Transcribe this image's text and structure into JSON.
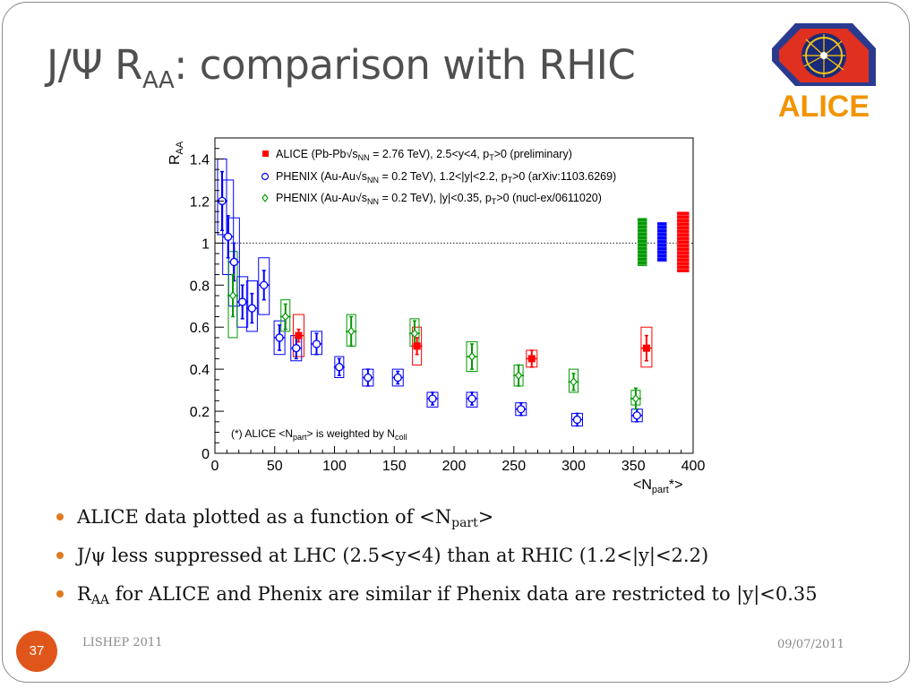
{
  "slide": {
    "title_main": "J/Ψ R",
    "title_sub": "AA",
    "title_rest": ": comparison with RHIC",
    "logo_text": "ALICE",
    "page_number": "37",
    "footer_left": "LISHEP 2011",
    "footer_right": "09/07/2011",
    "bullets": [
      {
        "pre": "ALICE data plotted as a function of <N",
        "sub": "part",
        "post": ">"
      },
      {
        "pre": "J/ψ less suppressed at LHC (2.5<y<4) than at RHIC (1.2<|y|<2.2)",
        "sub": "",
        "post": ""
      },
      {
        "pre": "R",
        "sub": "AA",
        "post": " for ALICE and Phenix are similar if Phenix data are restricted to |y|<0.35"
      }
    ],
    "colors": {
      "accent": "#e07a1f",
      "page_circle": "#e0561a",
      "title": "#4f4f4f"
    }
  },
  "chart_data": {
    "type": "scatter",
    "xlabel": "<N",
    "xlabel_sub": "part",
    "xlabel_post": "*>",
    "ylabel": "R",
    "ylabel_sub": "AA",
    "xlim": [
      0,
      400
    ],
    "ylim": [
      0,
      1.5
    ],
    "x_ticks": [
      0,
      50,
      100,
      150,
      200,
      250,
      300,
      350,
      400
    ],
    "y_ticks": [
      0,
      0.2,
      0.4,
      0.6,
      0.8,
      1,
      1.2,
      1.4
    ],
    "y_tick_labels": [
      "0",
      "0.2",
      "0.4",
      "0.6",
      "0.8",
      "1",
      "1.2",
      "1.4"
    ],
    "reference_line": 1,
    "annotation": {
      "pre": "(*) ALICE <N",
      "sub1": "part",
      "mid": "> is weighted by N",
      "sub2": "coll"
    },
    "series": [
      {
        "name": "ALICE (Pb-Pb",
        "legend_sqrt": "s",
        "legend_sub": "NN",
        "legend_post": " = 2.76 TeV), 2.5<y<4, p",
        "legend_sub2": "T",
        "legend_post2": ">0 (preliminary)",
        "color": "#ff0000",
        "marker": "square",
        "points": [
          {
            "x": 70,
            "y": 0.56,
            "err": 0.03,
            "sys_hw": 6,
            "sys_lo": 0.46,
            "sys_hi": 0.66
          },
          {
            "x": 169,
            "y": 0.51,
            "err": 0.04,
            "sys_hw": 5,
            "sys_lo": 0.42,
            "sys_hi": 0.6
          },
          {
            "x": 265,
            "y": 0.45,
            "err": 0.04,
            "sys_hw": 6,
            "sys_lo": 0.41,
            "sys_hi": 0.49
          },
          {
            "x": 361,
            "y": 0.5,
            "err": 0.06,
            "sys_hw": 6,
            "sys_lo": 0.41,
            "sys_hi": 0.6
          }
        ],
        "global_box": {
          "lo": 0.86,
          "hi": 1.15
        }
      },
      {
        "name": "PHENIX (Au-Au",
        "legend_sqrt": "s",
        "legend_sub": "NN",
        "legend_post": " = 0.2 TeV), 1.2<|y|<2.2, p",
        "legend_sub2": "T",
        "legend_post2": ">0 (arXiv:1103.6269)",
        "color": "#0000ff",
        "marker": "circle",
        "points": [
          {
            "x": 6,
            "y": 1.2,
            "err": 0.14,
            "sys_hw": 5,
            "sys_lo": 1.04,
            "sys_hi": 1.4
          },
          {
            "x": 11,
            "y": 1.03,
            "err": 0.1,
            "sys_hw": 6,
            "sys_lo": 0.85,
            "sys_hi": 1.3
          },
          {
            "x": 16,
            "y": 0.91,
            "err": 0.09,
            "sys_hw": 6,
            "sys_lo": 0.7,
            "sys_hi": 1.12
          },
          {
            "x": 23,
            "y": 0.72,
            "err": 0.08,
            "sys_hw": 6,
            "sys_lo": 0.6,
            "sys_hi": 0.84
          },
          {
            "x": 31,
            "y": 0.69,
            "err": 0.07,
            "sys_hw": 6,
            "sys_lo": 0.58,
            "sys_hi": 0.82
          },
          {
            "x": 41,
            "y": 0.8,
            "err": 0.07,
            "sys_hw": 6,
            "sys_lo": 0.66,
            "sys_hi": 0.93
          },
          {
            "x": 54,
            "y": 0.55,
            "err": 0.06,
            "sys_hw": 6,
            "sys_lo": 0.47,
            "sys_hi": 0.63
          },
          {
            "x": 68,
            "y": 0.5,
            "err": 0.05,
            "sys_hw": 6,
            "sys_lo": 0.44,
            "sys_hi": 0.56
          },
          {
            "x": 85,
            "y": 0.52,
            "err": 0.05,
            "sys_hw": 6,
            "sys_lo": 0.47,
            "sys_hi": 0.58
          },
          {
            "x": 104,
            "y": 0.41,
            "err": 0.04,
            "sys_hw": 5,
            "sys_lo": 0.36,
            "sys_hi": 0.46
          },
          {
            "x": 128,
            "y": 0.36,
            "err": 0.04,
            "sys_hw": 6,
            "sys_lo": 0.32,
            "sys_hi": 0.4
          },
          {
            "x": 153,
            "y": 0.36,
            "err": 0.03,
            "sys_hw": 6,
            "sys_lo": 0.32,
            "sys_hi": 0.4
          },
          {
            "x": 182,
            "y": 0.26,
            "err": 0.03,
            "sys_hw": 6,
            "sys_lo": 0.22,
            "sys_hi": 0.29
          },
          {
            "x": 215,
            "y": 0.26,
            "err": 0.03,
            "sys_hw": 6,
            "sys_lo": 0.22,
            "sys_hi": 0.29
          },
          {
            "x": 256,
            "y": 0.21,
            "err": 0.03,
            "sys_hw": 6,
            "sys_lo": 0.18,
            "sys_hi": 0.24
          },
          {
            "x": 303,
            "y": 0.16,
            "err": 0.03,
            "sys_hw": 6,
            "sys_lo": 0.13,
            "sys_hi": 0.19
          },
          {
            "x": 353,
            "y": 0.18,
            "err": 0.03,
            "sys_hw": 6,
            "sys_lo": 0.15,
            "sys_hi": 0.21
          }
        ],
        "global_box": {
          "lo": 0.91,
          "hi": 1.1
        }
      },
      {
        "name": "PHENIX (Au-Au",
        "legend_sqrt": "s",
        "legend_sub": "NN",
        "legend_post": " = 0.2 TeV), |y|<0.35, p",
        "legend_sub2": "T",
        "legend_post2": ">0 (nucl-ex/0611020)",
        "color": "#009900",
        "marker": "diamond",
        "points": [
          {
            "x": 15,
            "y": 0.75,
            "err": 0.1,
            "sys_hw": 5,
            "sys_lo": 0.55,
            "sys_hi": 0.96
          },
          {
            "x": 59,
            "y": 0.65,
            "err": 0.06,
            "sys_hw": 5,
            "sys_lo": 0.58,
            "sys_hi": 0.73
          },
          {
            "x": 114,
            "y": 0.58,
            "err": 0.07,
            "sys_hw": 5,
            "sys_lo": 0.51,
            "sys_hi": 0.66
          },
          {
            "x": 167,
            "y": 0.57,
            "err": 0.06,
            "sys_hw": 5,
            "sys_lo": 0.51,
            "sys_hi": 0.64
          },
          {
            "x": 215,
            "y": 0.46,
            "err": 0.06,
            "sys_hw": 6,
            "sys_lo": 0.39,
            "sys_hi": 0.53
          },
          {
            "x": 254,
            "y": 0.37,
            "err": 0.05,
            "sys_hw": 5,
            "sys_lo": 0.32,
            "sys_hi": 0.42
          },
          {
            "x": 300,
            "y": 0.34,
            "err": 0.04,
            "sys_hw": 5,
            "sys_lo": 0.29,
            "sys_hi": 0.4
          },
          {
            "x": 352,
            "y": 0.26,
            "err": 0.05,
            "sys_hw": 5,
            "sys_lo": 0.23,
            "sys_hi": 0.3
          }
        ],
        "global_box": {
          "lo": 0.89,
          "hi": 1.12
        }
      }
    ]
  }
}
